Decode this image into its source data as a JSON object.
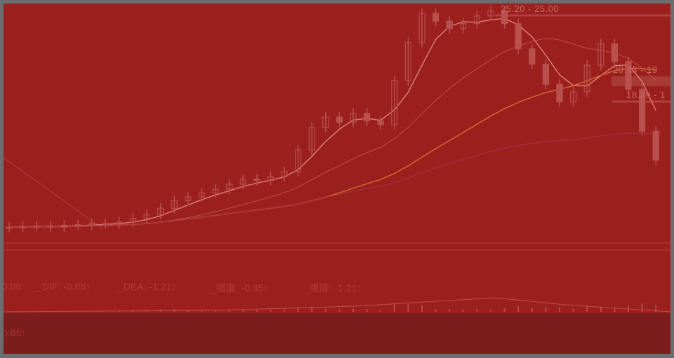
{
  "colors": {
    "background": "#9b1f1d",
    "frame": "#6b6e70",
    "candle": "#b8504d",
    "ma_short": "#d97b74",
    "ma_mid": "#c0504a",
    "ma_long": "#d2692f",
    "ma_xlong": "#a8324a"
  },
  "price_labels": {
    "high": "25.20 - 25.00",
    "mid": "20.43 - 19",
    "low": "18.39 - 1"
  },
  "macd": {
    "zero": "0.00",
    "dif": "_DIF: -0.85↑",
    "dea": "_DEA: -1.21↑",
    "strength1": "_强度: -0.85↑",
    "strength2": "_强度: -1.21↑"
  },
  "lower_panel": {
    "value": "0.65↑"
  },
  "chart_data": {
    "type": "candlestick",
    "close": [
      7.9,
      7.95,
      8.0,
      7.9,
      8.05,
      8.1,
      8.2,
      8.15,
      8.3,
      8.6,
      8.9,
      9.4,
      10.0,
      10.3,
      10.6,
      10.9,
      11.3,
      11.7,
      11.6,
      11.9,
      12.3,
      14.0,
      15.8,
      16.6,
      16.2,
      16.9,
      16.3,
      16.0,
      19.5,
      22.5,
      24.8,
      24.2,
      23.6,
      24.0,
      24.6,
      25.0,
      24.0,
      22.0,
      20.8,
      19.2,
      17.8,
      18.6,
      20.7,
      22.4,
      21.0,
      18.8,
      15.5,
      13.2
    ]
  }
}
